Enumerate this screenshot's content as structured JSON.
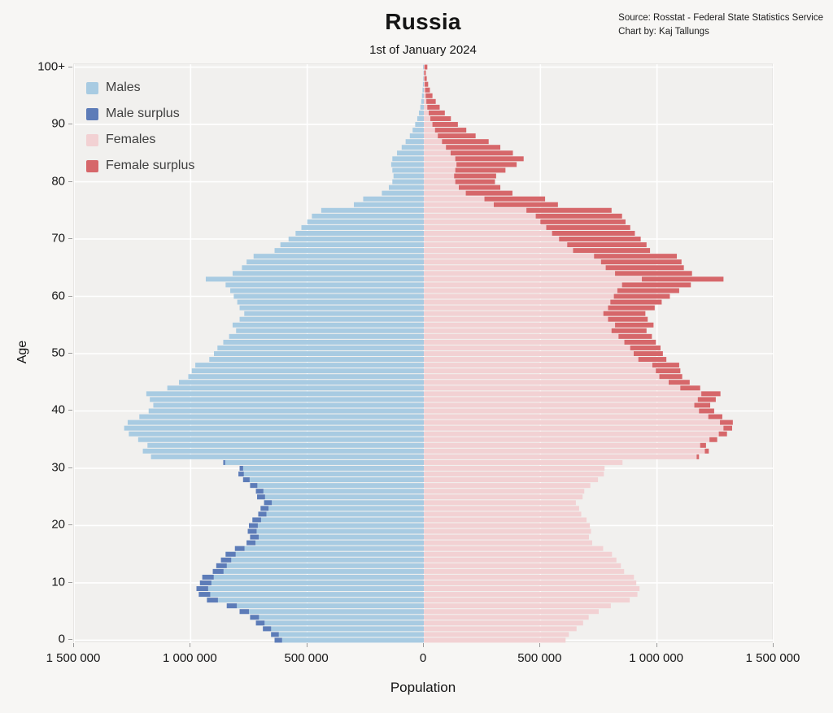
{
  "header": {
    "title": "Russia",
    "subtitle": "1st of January 2024",
    "source_line1": "Source: Rosstat - Federal State Statistics Service",
    "source_line2": "Chart by: Kaj Tallungs"
  },
  "legend": [
    {
      "label": "Males",
      "color": "#a8cbe2"
    },
    {
      "label": "Male surplus",
      "color": "#5d7cb8"
    },
    {
      "label": "Females",
      "color": "#f2d1d3"
    },
    {
      "label": "Female surplus",
      "color": "#d6676a"
    }
  ],
  "axes": {
    "x_label": "Population",
    "y_label": "Age",
    "x_ticks": [
      "1 500 000",
      "1 000 000",
      "500 000",
      "0",
      "500 000",
      "1 000 000",
      "1 500 000"
    ],
    "x_tick_values": [
      -1500000,
      -1000000,
      -500000,
      0,
      500000,
      1000000,
      1500000
    ],
    "y_ticks": [
      "0",
      "10",
      "20",
      "30",
      "40",
      "50",
      "60",
      "70",
      "80",
      "90",
      "100+"
    ],
    "y_tick_ages": [
      0,
      10,
      20,
      30,
      40,
      50,
      60,
      70,
      80,
      90,
      100
    ]
  },
  "chart_data": {
    "type": "bar",
    "subtype": "population_pyramid",
    "title": "Russia",
    "subtitle": "1st of January 2024",
    "xlabel": "Population",
    "ylabel": "Age",
    "x_max": 1500000,
    "x_range": [
      -1500000,
      1500000
    ],
    "unit": "persons",
    "ages_note": "Single-year ages 0 to 100+, bottom bar = age 0, top bar = 100+. Values estimated from chart pixels.",
    "surplus_note": "Male surplus = males - females where males > females (drawn at bar tip); female surplus = females - males where females > males.",
    "grid": true,
    "legend_position": "top-left inside plot",
    "series": [
      {
        "name": "Males",
        "side": "left",
        "values": [
          640000,
          655000,
          690000,
          720000,
          745000,
          790000,
          845000,
          930000,
          965000,
          975000,
          960000,
          950000,
          905000,
          890000,
          870000,
          850000,
          810000,
          760000,
          745000,
          755000,
          750000,
          735000,
          710000,
          700000,
          685000,
          715000,
          720000,
          745000,
          775000,
          795000,
          790000,
          860000,
          1170000,
          1205000,
          1185000,
          1225000,
          1265000,
          1285000,
          1270000,
          1220000,
          1180000,
          1160000,
          1175000,
          1190000,
          1100000,
          1050000,
          1010000,
          995000,
          980000,
          920000,
          900000,
          885000,
          860000,
          835000,
          805000,
          820000,
          790000,
          770000,
          790000,
          800000,
          815000,
          830000,
          850000,
          935000,
          820000,
          780000,
          760000,
          730000,
          640000,
          615000,
          580000,
          550000,
          525000,
          500000,
          480000,
          440000,
          300000,
          260000,
          180000,
          150000,
          135000,
          130000,
          135000,
          140000,
          135000,
          115000,
          95000,
          78000,
          60000,
          48000,
          37000,
          28000,
          21000,
          15000,
          11000,
          8000,
          5500,
          3800,
          2500,
          1700,
          3000
        ]
      },
      {
        "name": "Females",
        "side": "right",
        "values": [
          608000,
          622000,
          655000,
          683000,
          707000,
          750000,
          802000,
          883000,
          916000,
          925000,
          911000,
          901000,
          859000,
          845000,
          826000,
          807000,
          769000,
          722000,
          708000,
          717000,
          712000,
          698000,
          675000,
          666000,
          652000,
          681000,
          688000,
          714000,
          747000,
          772000,
          775000,
          852000,
          1180000,
          1222000,
          1210000,
          1258000,
          1300000,
          1322000,
          1325000,
          1280000,
          1245000,
          1228000,
          1252000,
          1272000,
          1185000,
          1140000,
          1108000,
          1100000,
          1095000,
          1040000,
          1025000,
          1015000,
          995000,
          978000,
          955000,
          985000,
          960000,
          950000,
          990000,
          1020000,
          1055000,
          1095000,
          1145000,
          1285000,
          1150000,
          1115000,
          1105000,
          1085000,
          970000,
          955000,
          930000,
          905000,
          885000,
          865000,
          850000,
          805000,
          575000,
          520000,
          380000,
          328000,
          305000,
          310000,
          350000,
          398000,
          428000,
          382000,
          328000,
          278000,
          222000,
          182000,
          146000,
          116000,
          90000,
          68000,
          51000,
          37000,
          26000,
          18500,
          12500,
          8500,
          15000
        ]
      }
    ]
  }
}
